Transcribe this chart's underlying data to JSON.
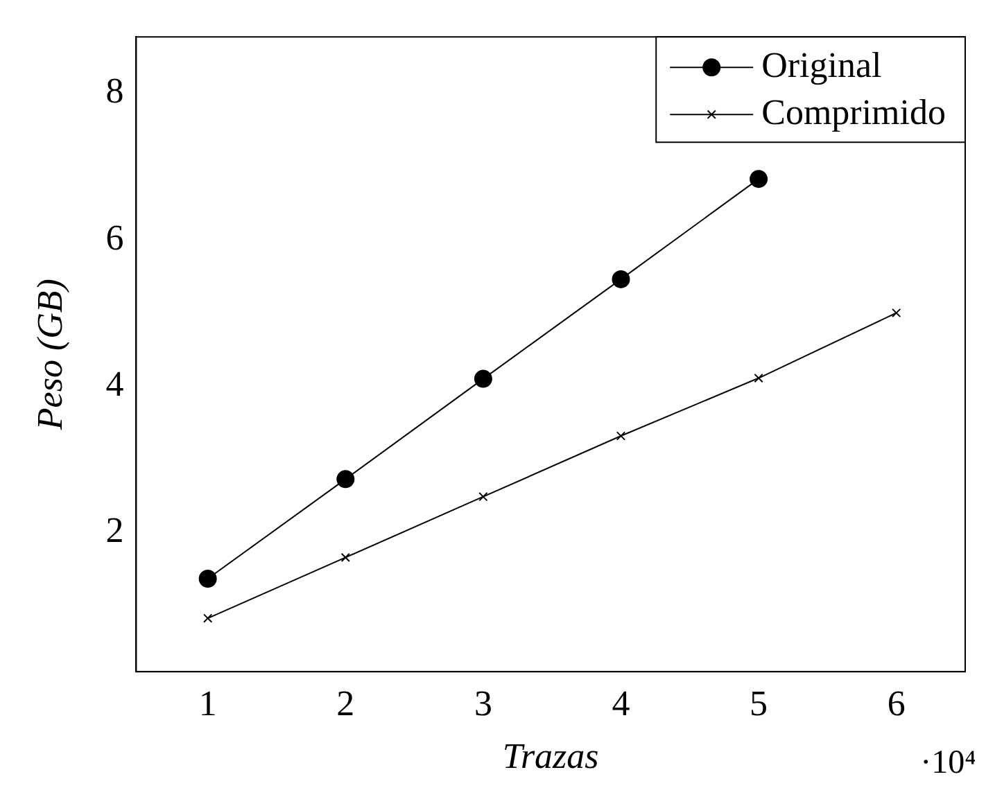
{
  "chart_data": {
    "type": "line",
    "xlabel": "Trazas",
    "ylabel": "Peso (GB)",
    "xlim": [
      0.48,
      6.5
    ],
    "ylim": [
      0.1,
      8.77
    ],
    "xticks": [
      1,
      2,
      3,
      4,
      5,
      6
    ],
    "yticks": [
      2,
      4,
      6,
      8
    ],
    "grid": false,
    "legend": "top right",
    "line_style": "solid",
    "annotations": [
      "·10⁴"
    ],
    "series": [
      {
        "name": "Original",
        "color": "#000000",
        "marker": "circle",
        "x": [
          1,
          2,
          3,
          4,
          5
        ],
        "values": [
          1.37,
          2.73,
          4.1,
          5.46,
          6.83
        ]
      },
      {
        "name": "Comprimido",
        "color": "#000000",
        "marker": "cross",
        "x": [
          1,
          2,
          3,
          4,
          5,
          6
        ],
        "values": [
          0.83,
          1.66,
          2.49,
          3.32,
          4.11,
          5.0
        ]
      }
    ]
  }
}
